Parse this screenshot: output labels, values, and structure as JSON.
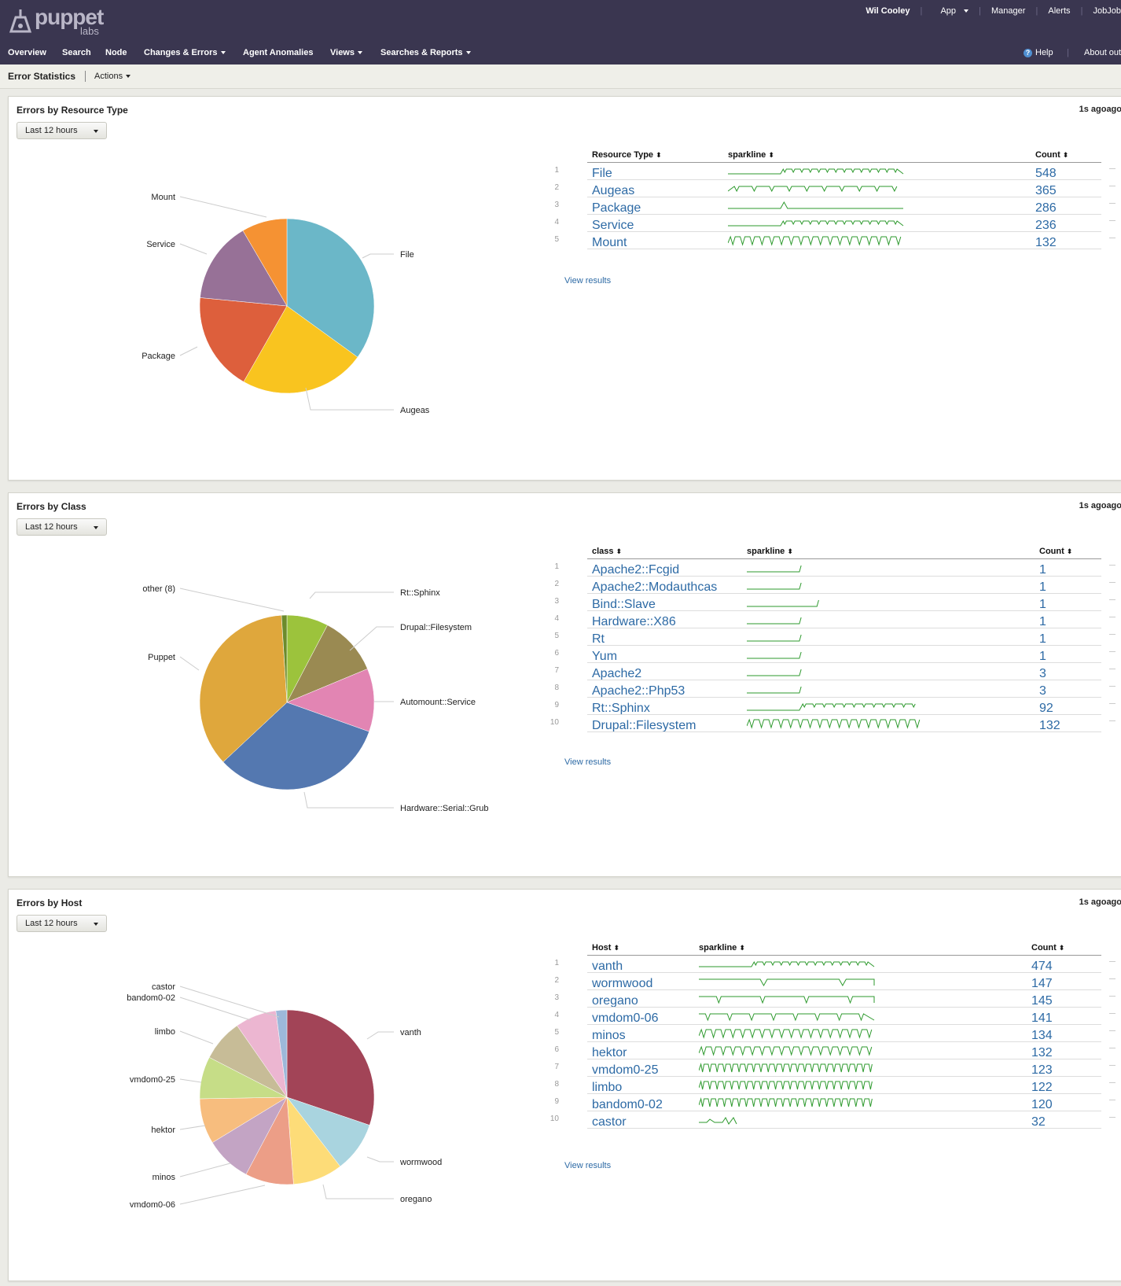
{
  "header": {
    "logo_word": "puppet",
    "logo_sub": "labs",
    "user": "Wil Cooley",
    "app_label": "App",
    "links": [
      "Manager",
      "Alerts",
      "JobJob"
    ],
    "help_label": "Help",
    "about_label": "About out"
  },
  "nav": {
    "items": [
      "Overview",
      "Search",
      "Node",
      "Changes & Errors",
      "Agent Anomalies",
      "Views",
      "Searches & Reports"
    ]
  },
  "subheader": {
    "title": "Error Statistics",
    "actions_label": "Actions"
  },
  "panels": [
    {
      "title": "Errors by Resource Type",
      "ago": "1s agoago",
      "range": "Last 12 hours",
      "view_results": "View results",
      "columns": [
        "Resource Type",
        "sparkline",
        "Count"
      ],
      "rows": [
        {
          "num": "1",
          "name": "File",
          "count": "548"
        },
        {
          "num": "2",
          "name": "Augeas",
          "count": "365"
        },
        {
          "num": "3",
          "name": "Package",
          "count": "286"
        },
        {
          "num": "4",
          "name": "Service",
          "count": "236"
        },
        {
          "num": "5",
          "name": "Mount",
          "count": "132"
        }
      ],
      "pie": [
        {
          "label": "File",
          "value": 548,
          "color": "#6bb7c8"
        },
        {
          "label": "Augeas",
          "value": 365,
          "color": "#f9c41f"
        },
        {
          "label": "Package",
          "value": 286,
          "color": "#dd5f3c"
        },
        {
          "label": "Service",
          "value": 236,
          "color": "#977197"
        },
        {
          "label": "Mount",
          "value": 132,
          "color": "#f59233"
        }
      ]
    },
    {
      "title": "Errors by Class",
      "ago": "1s agoago",
      "range": "Last 12 hours",
      "view_results": "View results",
      "columns": [
        "class",
        "sparkline",
        "Count"
      ],
      "rows": [
        {
          "num": "1",
          "name": "Apache2::Fcgid",
          "count": "1"
        },
        {
          "num": "2",
          "name": "Apache2::Modauthcas",
          "count": "1"
        },
        {
          "num": "3",
          "name": "Bind::Slave",
          "count": "1"
        },
        {
          "num": "4",
          "name": "Hardware::X86",
          "count": "1"
        },
        {
          "num": "5",
          "name": "Rt",
          "count": "1"
        },
        {
          "num": "6",
          "name": "Yum",
          "count": "1"
        },
        {
          "num": "7",
          "name": "Apache2",
          "count": "3"
        },
        {
          "num": "8",
          "name": "Apache2::Php53",
          "count": "3"
        },
        {
          "num": "9",
          "name": "Rt::Sphinx",
          "count": "92"
        },
        {
          "num": "10",
          "name": "Drupal::Filesystem",
          "count": "132"
        }
      ],
      "pie": [
        {
          "label": "Rt::Sphinx",
          "value": 92,
          "color": "#9cc33c"
        },
        {
          "label": "Drupal::Filesystem",
          "value": 132,
          "color": "#9a8a52"
        },
        {
          "label": "Automount::Service",
          "value": 140,
          "color": "#e285b3"
        },
        {
          "label": "Hardware::Serial::Grub",
          "value": 390,
          "color": "#5478b0"
        },
        {
          "label": "Puppet",
          "value": 430,
          "color": "#dfa73c"
        },
        {
          "label": "other (8)",
          "value": 12,
          "color": "#6c8b2c"
        }
      ]
    },
    {
      "title": "Errors by Host",
      "ago": "1s agoago",
      "range": "Last 12 hours",
      "view_results": "View results",
      "columns": [
        "Host",
        "sparkline",
        "Count"
      ],
      "rows": [
        {
          "num": "1",
          "name": "vanth",
          "count": "474"
        },
        {
          "num": "2",
          "name": "wormwood",
          "count": "147"
        },
        {
          "num": "3",
          "name": "oregano",
          "count": "145"
        },
        {
          "num": "4",
          "name": "vmdom0-06",
          "count": "141"
        },
        {
          "num": "5",
          "name": "minos",
          "count": "134"
        },
        {
          "num": "6",
          "name": "hektor",
          "count": "132"
        },
        {
          "num": "7",
          "name": "vmdom0-25",
          "count": "123"
        },
        {
          "num": "8",
          "name": "limbo",
          "count": "122"
        },
        {
          "num": "9",
          "name": "bandom0-02",
          "count": "120"
        },
        {
          "num": "10",
          "name": "castor",
          "count": "32"
        }
      ],
      "pie": [
        {
          "label": "vanth",
          "value": 474,
          "color": "#a24457"
        },
        {
          "label": "wormwood",
          "value": 147,
          "color": "#a9d4df"
        },
        {
          "label": "oregano",
          "value": 145,
          "color": "#fddc78"
        },
        {
          "label": "vmdom0-06",
          "value": 141,
          "color": "#ec9e87"
        },
        {
          "label": "minos",
          "value": 134,
          "color": "#c3a4c4"
        },
        {
          "label": "hektor",
          "value": 132,
          "color": "#f7bd7e"
        },
        {
          "label": "vmdom0-25",
          "value": 123,
          "color": "#c6dd87"
        },
        {
          "label": "limbo",
          "value": 122,
          "color": "#c7bc97"
        },
        {
          "label": "bandom0-02",
          "value": 120,
          "color": "#ecb6d1"
        },
        {
          "label": "castor",
          "value": 32,
          "color": "#9db8da"
        }
      ]
    }
  ]
}
